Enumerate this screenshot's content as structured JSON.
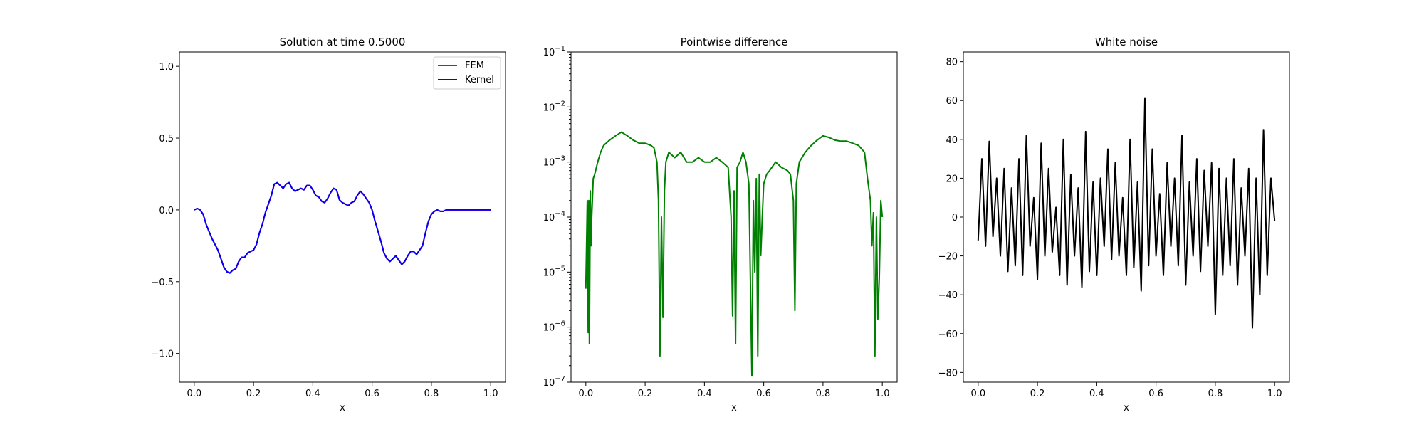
{
  "chart_data": [
    {
      "type": "line",
      "title": "Solution at time 0.5000",
      "xlabel": "x",
      "ylabel": "",
      "xlim": [
        -0.05,
        1.05
      ],
      "ylim": [
        -1.2,
        1.1
      ],
      "xticks": [
        0.0,
        0.2,
        0.4,
        0.6,
        0.8,
        1.0
      ],
      "xtick_labels": [
        "0.0",
        "0.2",
        "0.4",
        "0.6",
        "0.8",
        "1.0"
      ],
      "yticks": [
        -1.0,
        -0.5,
        0.0,
        0.5,
        1.0
      ],
      "ytick_labels": [
        "−1.0",
        "−0.5",
        "0.0",
        "0.5",
        "1.0"
      ],
      "legend": {
        "placement": "top-right",
        "entries": [
          {
            "label": "FEM",
            "color": "#ff0000"
          },
          {
            "label": "Kernel",
            "color": "#0000ff"
          }
        ]
      },
      "series": [
        {
          "name": "FEM",
          "color": "#ff0000",
          "x": [
            0.0,
            0.01,
            0.02,
            0.03,
            0.04,
            0.05,
            0.06,
            0.08,
            0.1,
            0.11,
            0.12,
            0.13,
            0.14,
            0.15,
            0.16,
            0.17,
            0.18,
            0.19,
            0.2,
            0.21,
            0.22,
            0.23,
            0.24,
            0.25,
            0.26,
            0.27,
            0.28,
            0.29,
            0.3,
            0.31,
            0.32,
            0.33,
            0.34,
            0.35,
            0.36,
            0.37,
            0.38,
            0.39,
            0.4,
            0.41,
            0.42,
            0.43,
            0.44,
            0.45,
            0.46,
            0.47,
            0.48,
            0.49,
            0.5,
            0.51,
            0.52,
            0.53,
            0.54,
            0.55,
            0.56,
            0.57,
            0.58,
            0.59,
            0.6,
            0.61,
            0.62,
            0.63,
            0.64,
            0.65,
            0.66,
            0.67,
            0.68,
            0.69,
            0.7,
            0.71,
            0.72,
            0.73,
            0.74,
            0.75,
            0.76,
            0.77,
            0.78,
            0.79,
            0.8,
            0.81,
            0.82,
            0.83,
            0.84,
            0.85,
            0.86,
            0.87,
            0.88,
            0.89,
            0.9,
            0.91,
            0.92,
            0.93,
            0.94,
            0.95,
            0.96,
            0.97,
            0.98,
            0.99,
            1.0
          ],
          "y": [
            0.0,
            0.01,
            0.0,
            -0.03,
            -0.1,
            -0.15,
            -0.2,
            -0.28,
            -0.4,
            -0.43,
            -0.44,
            -0.42,
            -0.41,
            -0.36,
            -0.33,
            -0.33,
            -0.3,
            -0.29,
            -0.28,
            -0.24,
            -0.16,
            -0.1,
            -0.02,
            0.04,
            0.1,
            0.18,
            0.19,
            0.17,
            0.15,
            0.18,
            0.19,
            0.15,
            0.13,
            0.14,
            0.15,
            0.14,
            0.17,
            0.17,
            0.14,
            0.1,
            0.09,
            0.06,
            0.05,
            0.08,
            0.12,
            0.15,
            0.14,
            0.07,
            0.05,
            0.04,
            0.03,
            0.05,
            0.06,
            0.1,
            0.13,
            0.11,
            0.08,
            0.05,
            0.0,
            -0.08,
            -0.15,
            -0.22,
            -0.3,
            -0.34,
            -0.36,
            -0.34,
            -0.32,
            -0.35,
            -0.38,
            -0.36,
            -0.32,
            -0.29,
            -0.29,
            -0.31,
            -0.28,
            -0.25,
            -0.16,
            -0.08,
            -0.03,
            -0.01,
            0.0,
            -0.01,
            -0.01,
            0.0,
            0.0,
            0.0,
            0.0,
            0.0,
            0.0,
            0.0,
            0.0,
            0.0,
            0.0,
            0.0,
            0.0,
            0.0,
            0.0,
            0.0,
            0.0
          ]
        },
        {
          "name": "Kernel",
          "color": "#0000ff",
          "x": [
            0.0,
            0.01,
            0.02,
            0.03,
            0.04,
            0.05,
            0.06,
            0.08,
            0.1,
            0.11,
            0.12,
            0.13,
            0.14,
            0.15,
            0.16,
            0.17,
            0.18,
            0.19,
            0.2,
            0.21,
            0.22,
            0.23,
            0.24,
            0.25,
            0.26,
            0.27,
            0.28,
            0.29,
            0.3,
            0.31,
            0.32,
            0.33,
            0.34,
            0.35,
            0.36,
            0.37,
            0.38,
            0.39,
            0.4,
            0.41,
            0.42,
            0.43,
            0.44,
            0.45,
            0.46,
            0.47,
            0.48,
            0.49,
            0.5,
            0.51,
            0.52,
            0.53,
            0.54,
            0.55,
            0.56,
            0.57,
            0.58,
            0.59,
            0.6,
            0.61,
            0.62,
            0.63,
            0.64,
            0.65,
            0.66,
            0.67,
            0.68,
            0.69,
            0.7,
            0.71,
            0.72,
            0.73,
            0.74,
            0.75,
            0.76,
            0.77,
            0.78,
            0.79,
            0.8,
            0.81,
            0.82,
            0.83,
            0.84,
            0.85,
            0.86,
            0.87,
            0.88,
            0.89,
            0.9,
            0.91,
            0.92,
            0.93,
            0.94,
            0.95,
            0.96,
            0.97,
            0.98,
            0.99,
            1.0
          ],
          "y": [
            0.0,
            0.01,
            0.0,
            -0.03,
            -0.1,
            -0.15,
            -0.2,
            -0.28,
            -0.4,
            -0.43,
            -0.44,
            -0.42,
            -0.41,
            -0.36,
            -0.33,
            -0.33,
            -0.3,
            -0.29,
            -0.28,
            -0.24,
            -0.16,
            -0.1,
            -0.02,
            0.04,
            0.1,
            0.18,
            0.19,
            0.17,
            0.15,
            0.18,
            0.19,
            0.15,
            0.13,
            0.14,
            0.15,
            0.14,
            0.17,
            0.17,
            0.14,
            0.1,
            0.09,
            0.06,
            0.05,
            0.08,
            0.12,
            0.15,
            0.14,
            0.07,
            0.05,
            0.04,
            0.03,
            0.05,
            0.06,
            0.1,
            0.13,
            0.11,
            0.08,
            0.05,
            0.0,
            -0.08,
            -0.15,
            -0.22,
            -0.3,
            -0.34,
            -0.36,
            -0.34,
            -0.32,
            -0.35,
            -0.38,
            -0.36,
            -0.32,
            -0.29,
            -0.29,
            -0.31,
            -0.28,
            -0.25,
            -0.16,
            -0.08,
            -0.03,
            -0.01,
            0.0,
            -0.01,
            -0.01,
            0.0,
            0.0,
            0.0,
            0.0,
            0.0,
            0.0,
            0.0,
            0.0,
            0.0,
            0.0,
            0.0,
            0.0,
            0.0,
            0.0,
            0.0,
            0.0
          ]
        }
      ]
    },
    {
      "type": "line",
      "title": "Pointwise difference",
      "xlabel": "x",
      "ylabel": "",
      "yscale": "log",
      "xlim": [
        -0.05,
        1.05
      ],
      "ylim": [
        1e-07,
        0.1
      ],
      "xticks": [
        0.0,
        0.2,
        0.4,
        0.6,
        0.8,
        1.0
      ],
      "xtick_labels": [
        "0.0",
        "0.2",
        "0.4",
        "0.6",
        "0.8",
        "1.0"
      ],
      "ytick_labels": [
        "10−7",
        "10−6",
        "10−5",
        "10−4",
        "10−3",
        "10−2",
        "10−1"
      ],
      "series": [
        {
          "color": "#008000",
          "x": [
            0.0,
            0.005,
            0.008,
            0.01,
            0.012,
            0.015,
            0.018,
            0.02,
            0.025,
            0.03,
            0.04,
            0.05,
            0.06,
            0.08,
            0.1,
            0.12,
            0.14,
            0.16,
            0.18,
            0.2,
            0.22,
            0.23,
            0.24,
            0.245,
            0.25,
            0.255,
            0.26,
            0.265,
            0.27,
            0.28,
            0.3,
            0.32,
            0.34,
            0.36,
            0.38,
            0.4,
            0.42,
            0.44,
            0.46,
            0.48,
            0.49,
            0.495,
            0.5,
            0.505,
            0.51,
            0.52,
            0.53,
            0.54,
            0.55,
            0.56,
            0.565,
            0.57,
            0.575,
            0.58,
            0.585,
            0.59,
            0.595,
            0.6,
            0.61,
            0.62,
            0.64,
            0.66,
            0.68,
            0.69,
            0.7,
            0.705,
            0.71,
            0.72,
            0.74,
            0.76,
            0.78,
            0.8,
            0.82,
            0.84,
            0.86,
            0.88,
            0.9,
            0.92,
            0.94,
            0.95,
            0.96,
            0.965,
            0.97,
            0.975,
            0.98,
            0.985,
            0.99,
            0.995,
            1.0
          ],
          "y": [
            5e-06,
            0.0002,
            8e-07,
            0.0002,
            5e-07,
            0.0003,
            3e-05,
            0.0001,
            0.0005,
            0.0006,
            0.001,
            0.0015,
            0.002,
            0.0025,
            0.003,
            0.0035,
            0.003,
            0.0025,
            0.0022,
            0.0022,
            0.002,
            0.0018,
            0.001,
            0.0002,
            3e-07,
            0.0001,
            1.5e-06,
            0.0003,
            0.001,
            0.0015,
            0.0012,
            0.0015,
            0.001,
            0.001,
            0.0012,
            0.001,
            0.001,
            0.0012,
            0.001,
            0.0008,
            0.0001,
            1.6e-06,
            0.0003,
            5e-07,
            0.0008,
            0.001,
            0.0015,
            0.001,
            0.0004,
            1.3e-07,
            0.0002,
            1e-05,
            0.0005,
            3e-07,
            0.0006,
            2e-05,
            0.0001,
            0.0004,
            0.0006,
            0.0007,
            0.001,
            0.0008,
            0.0007,
            0.0006,
            0.0002,
            2e-06,
            0.0004,
            0.001,
            0.0015,
            0.002,
            0.0025,
            0.003,
            0.0028,
            0.0025,
            0.0024,
            0.0024,
            0.0022,
            0.002,
            0.0015,
            0.0005,
            0.0002,
            3e-05,
            0.00012,
            3e-07,
            0.0001,
            1.4e-06,
            8e-06,
            0.0002,
            0.0001
          ]
        }
      ]
    },
    {
      "type": "line",
      "title": "White noise",
      "xlabel": "x",
      "ylabel": "",
      "xlim": [
        -0.05,
        1.05
      ],
      "ylim": [
        -85,
        85
      ],
      "xticks": [
        0.0,
        0.2,
        0.4,
        0.6,
        0.8,
        1.0
      ],
      "xtick_labels": [
        "0.0",
        "0.2",
        "0.4",
        "0.6",
        "0.8",
        "1.0"
      ],
      "yticks": [
        -80,
        -60,
        -40,
        -20,
        0,
        20,
        40,
        60,
        80
      ],
      "ytick_labels": [
        "−80",
        "−60",
        "−40",
        "−20",
        "0",
        "20",
        "40",
        "60",
        "80"
      ],
      "series": [
        {
          "color": "#000000",
          "x": [
            0.0,
            0.0125,
            0.025,
            0.0375,
            0.05,
            0.0625,
            0.075,
            0.0875,
            0.1,
            0.1125,
            0.125,
            0.1375,
            0.15,
            0.1625,
            0.175,
            0.1875,
            0.2,
            0.2125,
            0.225,
            0.2375,
            0.25,
            0.2625,
            0.275,
            0.2875,
            0.3,
            0.3125,
            0.325,
            0.3375,
            0.35,
            0.3625,
            0.375,
            0.3875,
            0.4,
            0.4125,
            0.425,
            0.4375,
            0.45,
            0.4625,
            0.475,
            0.4875,
            0.5,
            0.5125,
            0.525,
            0.5375,
            0.55,
            0.5625,
            0.575,
            0.5875,
            0.6,
            0.6125,
            0.625,
            0.6375,
            0.65,
            0.6625,
            0.675,
            0.6875,
            0.7,
            0.7125,
            0.725,
            0.7375,
            0.75,
            0.7625,
            0.775,
            0.7875,
            0.8,
            0.8125,
            0.825,
            0.8375,
            0.85,
            0.8625,
            0.875,
            0.8875,
            0.9,
            0.9125,
            0.925,
            0.9375,
            0.95,
            0.9625,
            0.975,
            0.9875,
            1.0
          ],
          "y": [
            -12,
            30,
            -15,
            39,
            -10,
            20,
            -20,
            25,
            -28,
            15,
            -25,
            30,
            -30,
            42,
            -15,
            10,
            -32,
            38,
            -20,
            25,
            -18,
            5,
            -30,
            40,
            -35,
            22,
            -20,
            15,
            -36,
            44,
            -28,
            18,
            -30,
            20,
            -15,
            35,
            -22,
            28,
            -20,
            10,
            -30,
            40,
            -26,
            18,
            -38,
            61,
            -25,
            35,
            -20,
            12,
            -30,
            28,
            -15,
            20,
            -25,
            42,
            -35,
            18,
            -20,
            30,
            -28,
            24,
            -15,
            28,
            -50,
            25,
            -30,
            20,
            -25,
            30,
            -35,
            15,
            -20,
            25,
            -57,
            20,
            -40,
            45,
            -30,
            20,
            -2
          ]
        }
      ]
    }
  ]
}
